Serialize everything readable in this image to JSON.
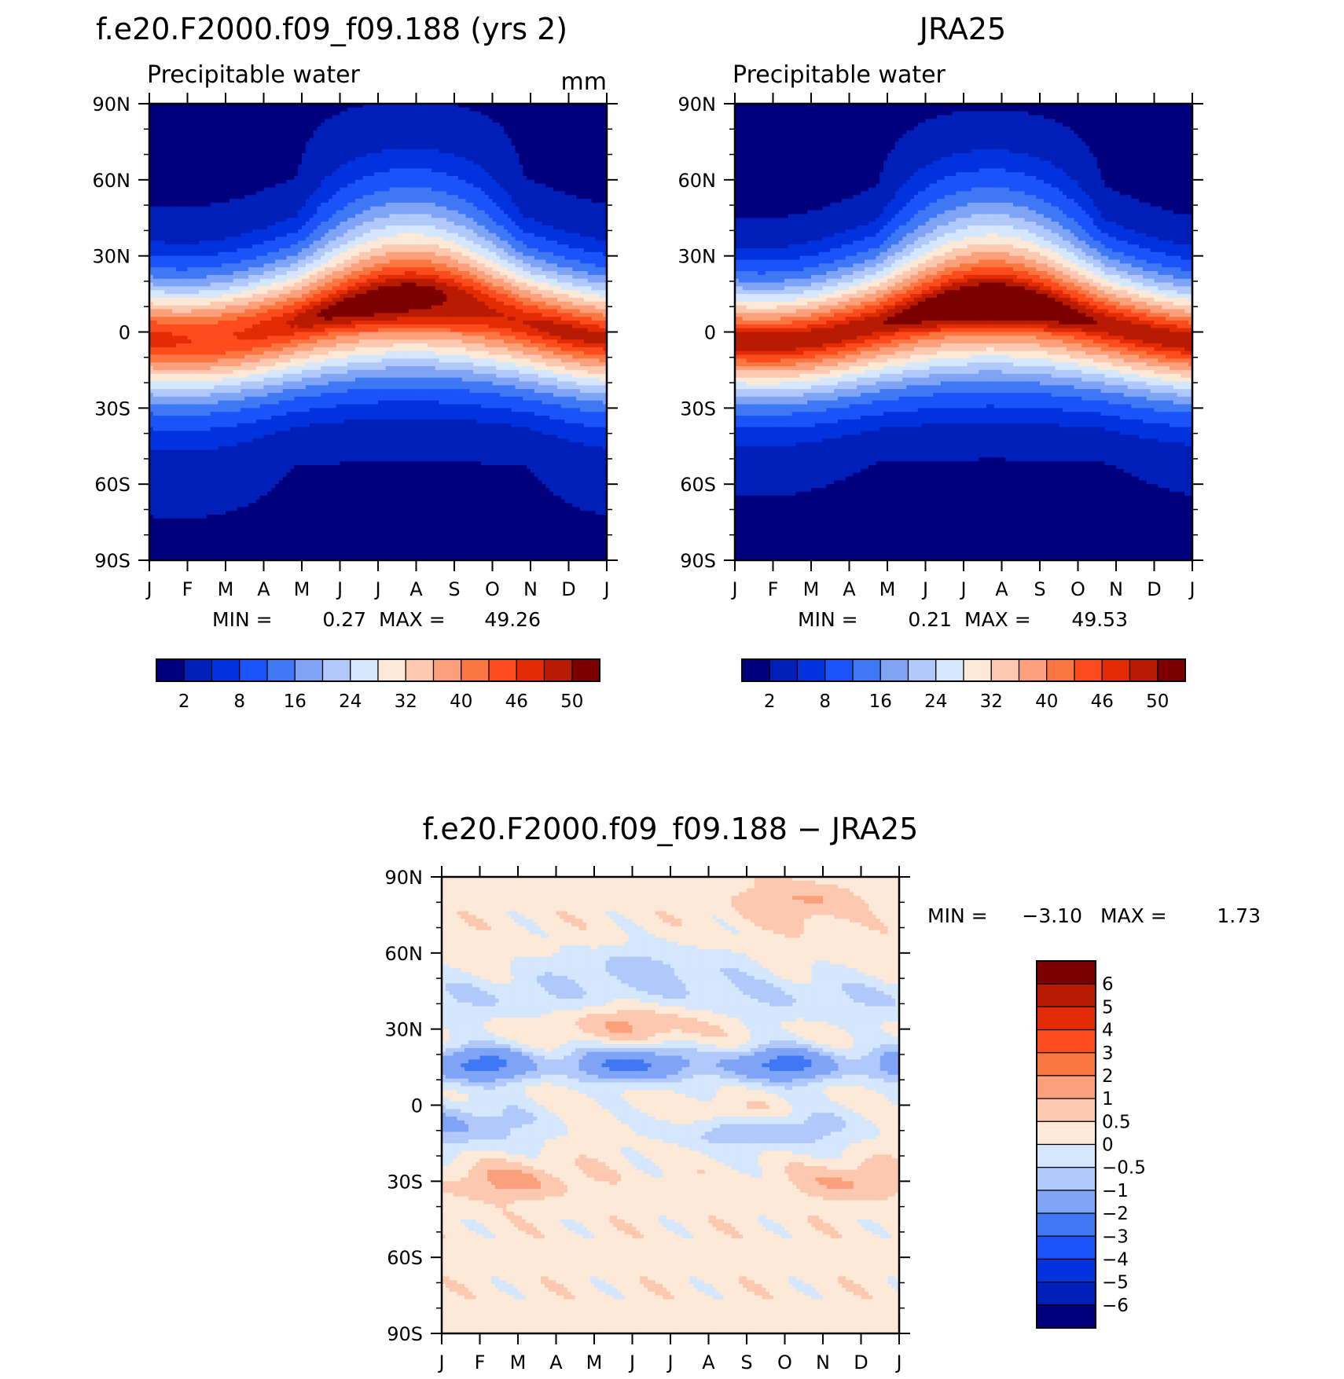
{
  "colors": {
    "abs_palette": [
      "#00007f",
      "#001fb8",
      "#0033dd",
      "#1a53f7",
      "#3f78f5",
      "#7fa4f6",
      "#b1c8fa",
      "#d5e7fc",
      "#fde9d7",
      "#fcc9b0",
      "#fba07a",
      "#fb7742",
      "#fc4c1d",
      "#e32c05",
      "#b81b02",
      "#7d0000"
    ],
    "diff_palette": [
      "#00007f",
      "#001fb8",
      "#0033dd",
      "#1a53f7",
      "#3f78f5",
      "#7fa4f6",
      "#b1c8fa",
      "#d5e7fc",
      "#fde9d7",
      "#fcc9b0",
      "#fba07a",
      "#fb7742",
      "#fc4c1d",
      "#e32c05",
      "#b81b02",
      "#7d0000"
    ]
  },
  "chart_data": [
    {
      "type": "heatmap",
      "title": "f.e20.F2000.f09_f09.188 (yrs 2)",
      "subtitle": "Precipitable water",
      "units": "mm",
      "x_ticks": [
        "J",
        "F",
        "M",
        "A",
        "M",
        "J",
        "J",
        "A",
        "S",
        "O",
        "N",
        "D",
        "J"
      ],
      "y_ticks": [
        "90N",
        "60N",
        "30N",
        "0",
        "30S",
        "60S",
        "90S"
      ],
      "min_label": "MIN =",
      "min_value": "0.27",
      "max_label": "MAX =",
      "max_value": "49.26",
      "colorbar_labels": [
        "2",
        "8",
        "16",
        "24",
        "32",
        "40",
        "46",
        "50"
      ]
    },
    {
      "type": "heatmap",
      "title": "JRA25",
      "subtitle": "Precipitable water",
      "x_ticks": [
        "J",
        "F",
        "M",
        "A",
        "M",
        "J",
        "J",
        "A",
        "S",
        "O",
        "N",
        "D",
        "J"
      ],
      "y_ticks": [
        "90N",
        "60N",
        "30N",
        "0",
        "30S",
        "60S",
        "90S"
      ],
      "min_label": "MIN =",
      "min_value": "0.21",
      "max_label": "MAX =",
      "max_value": "49.53",
      "colorbar_labels": [
        "2",
        "8",
        "16",
        "24",
        "32",
        "40",
        "46",
        "50"
      ]
    },
    {
      "type": "heatmap",
      "title": "f.e20.F2000.f09_f09.188 − JRA25",
      "x_ticks": [
        "J",
        "F",
        "M",
        "A",
        "M",
        "J",
        "J",
        "A",
        "S",
        "O",
        "N",
        "D",
        "J"
      ],
      "y_ticks": [
        "90N",
        "60N",
        "30N",
        "0",
        "30S",
        "60S",
        "90S"
      ],
      "min_label": "MIN =",
      "min_value": "−3.10",
      "max_label": "MAX =",
      "max_value": "1.73",
      "colorbar_labels": [
        "6",
        "5",
        "4",
        "3",
        "2",
        "1",
        "0.5",
        "0",
        "−0.5",
        "−1",
        "−2",
        "−3",
        "−4",
        "−5",
        "−6"
      ]
    }
  ]
}
